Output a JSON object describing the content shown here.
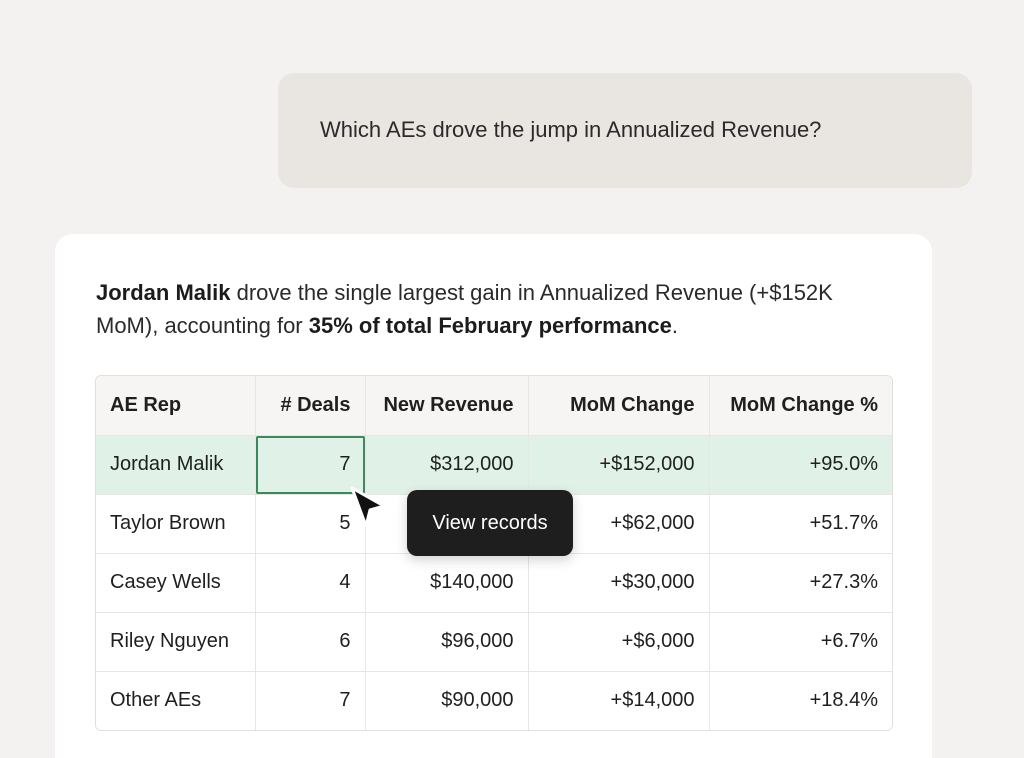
{
  "user_message": "Which AEs drove the jump in Annualized Revenue?",
  "answer": {
    "summary_parts": {
      "name": "Jordan Malik",
      "text1": " drove the single largest gain in Annualized Revenue (+$152K MoM), accounting for ",
      "emphasis": "35% of total February performance",
      "text2": "."
    },
    "table": {
      "headers": [
        "AE Rep",
        "# Deals",
        "New Revenue",
        "MoM Change",
        "MoM Change %"
      ],
      "rows": [
        [
          "Jordan Malik",
          "7",
          "$312,000",
          "+$152,000",
          "+95.0%"
        ],
        [
          "Taylor Brown",
          "5",
          "",
          "+$62,000",
          "+51.7%"
        ],
        [
          "Casey Wells",
          "4",
          "$140,000",
          "+$30,000",
          "+27.3%"
        ],
        [
          "Riley Nguyen",
          "6",
          "$96,000",
          "+$6,000",
          "+6.7%"
        ],
        [
          "Other AEs",
          "7",
          "$90,000",
          "+$14,000",
          "+18.4%"
        ]
      ]
    },
    "tooltip": "View records"
  },
  "colors": {
    "highlight_row": "#e0f2e7",
    "selected_border": "#3a8a5c",
    "tooltip_bg": "#1e1e1e"
  },
  "icons": {
    "cursor": "arrow-pointer-icon"
  }
}
